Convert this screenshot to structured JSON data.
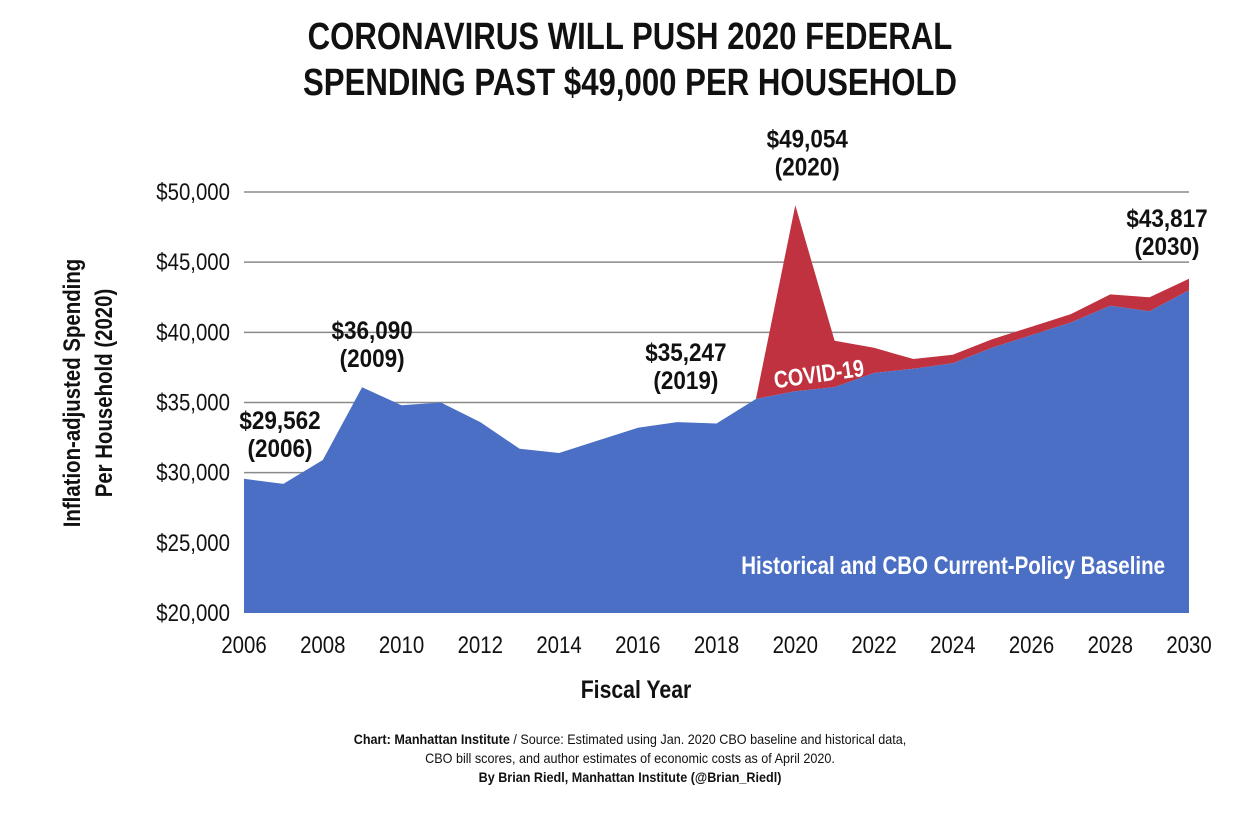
{
  "title": {
    "line1": "CORONAVIRUS WILL PUSH 2020 FEDERAL",
    "line2": "SPENDING PAST $49,000 PER HOUSEHOLD"
  },
  "footer": {
    "credit": "Chart: Manhattan Institute",
    "separator": " / ",
    "source_line1": " Source: Estimated using Jan. 2020 CBO baseline and historical data,",
    "source_line2": "CBO bill scores, and author estimates of economic costs as of April 2020.",
    "byline": "By Brian Riedl, Manhattan Institute (@Brian_Riedl)"
  },
  "colors": {
    "baseline": "#4a6fc4",
    "covid": "#c0323f",
    "grid": "#8a8a8a",
    "text": "#111111"
  },
  "chart_data": {
    "type": "area",
    "xlabel": "Fiscal Year",
    "ylabel_lines": [
      "Inflation-adjusted Spending",
      "Per Household (2020)"
    ],
    "x": [
      2006,
      2007,
      2008,
      2009,
      2010,
      2011,
      2012,
      2013,
      2014,
      2015,
      2016,
      2017,
      2018,
      2019,
      2020,
      2021,
      2022,
      2023,
      2024,
      2025,
      2026,
      2027,
      2028,
      2029,
      2030
    ],
    "xlim": [
      2006,
      2030
    ],
    "ylim": [
      20000,
      50000
    ],
    "x_ticks": [
      "2006",
      "2008",
      "2010",
      "2012",
      "2014",
      "2016",
      "2018",
      "2020",
      "2022",
      "2024",
      "2026",
      "2028",
      "2030"
    ],
    "y_ticks": [
      "$20,000",
      "$25,000",
      "$30,000",
      "$35,000",
      "$40,000",
      "$45,000",
      "$50,000"
    ],
    "grid": true,
    "series": [
      {
        "name": "Historical and CBO Current-Policy Baseline",
        "values": [
          29562,
          29200,
          30900,
          36090,
          34800,
          35000,
          33600,
          31700,
          31400,
          32300,
          33200,
          33600,
          33500,
          35247,
          35800,
          36100,
          37100,
          37400,
          37800,
          38900,
          39800,
          40700,
          41900,
          41500,
          43000
        ]
      },
      {
        "name": "COVID-19",
        "values": [
          null,
          null,
          null,
          null,
          null,
          null,
          null,
          null,
          null,
          null,
          null,
          null,
          null,
          35247,
          49054,
          39400,
          38900,
          38100,
          38400,
          39500,
          40400,
          41300,
          42700,
          42500,
          43817
        ]
      }
    ],
    "annotations": [
      {
        "x": 2006,
        "y": 29562,
        "label": "$29,562",
        "sub": "(2006)"
      },
      {
        "x": 2009,
        "y": 36090,
        "label": "$36,090",
        "sub": "(2009)"
      },
      {
        "x": 2019,
        "y": 35247,
        "label": "$35,247",
        "sub": "(2019)"
      },
      {
        "x": 2020,
        "y": 49054,
        "label": "$49,054",
        "sub": "(2020)"
      },
      {
        "x": 2030,
        "y": 43817,
        "label": "$43,817",
        "sub": "(2030)"
      }
    ]
  }
}
